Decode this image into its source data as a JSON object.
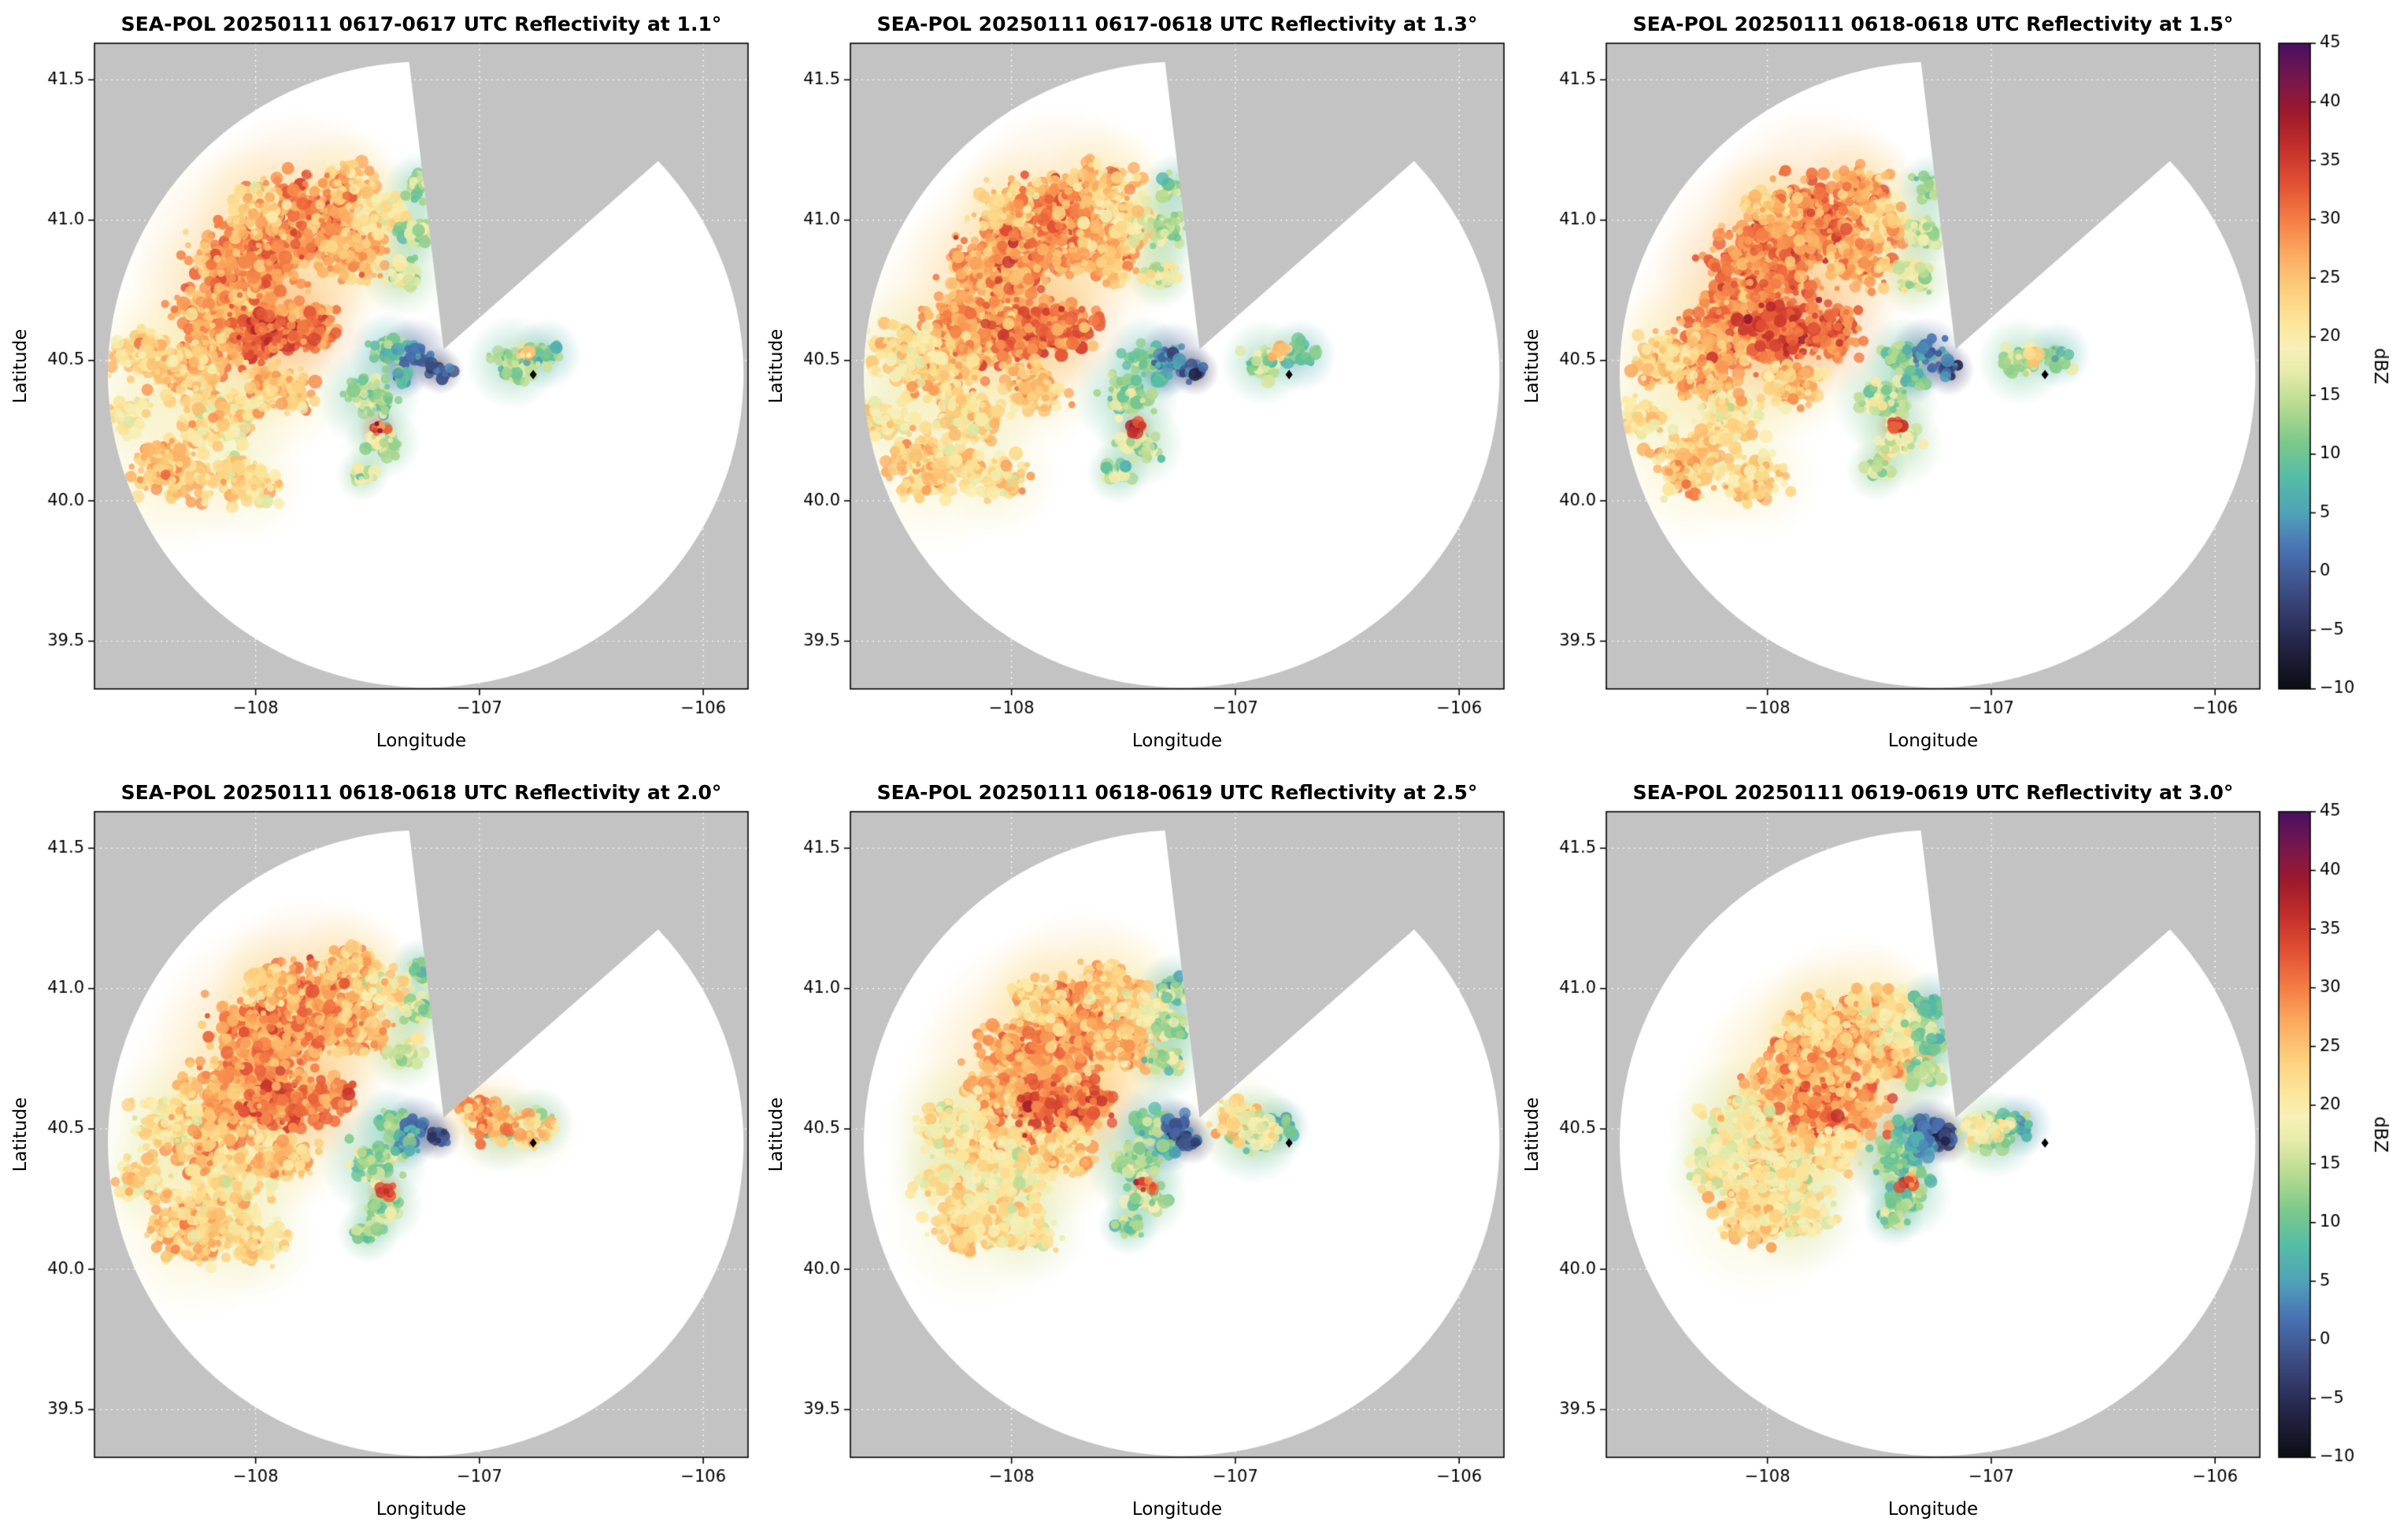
{
  "figure": {
    "background": "#ffffff",
    "outside_color": "#c3c3c3",
    "grid_color": "rgba(255,255,255,0.9)",
    "frame_color": "#000000"
  },
  "chart_data": {
    "type": "radar_ppi_grid",
    "panels": [
      {
        "title": "SEA-POL 20250111 0617-0617 UTC Reflectivity at 1.1°",
        "elevation_deg": 1.1,
        "time_utc": "0617-0617",
        "seed": 11,
        "shrink": 1.0,
        "dbz_offset": 0,
        "extra_cells": []
      },
      {
        "title": "SEA-POL 20250111 0617-0618 UTC Reflectivity at 1.3°",
        "elevation_deg": 1.3,
        "time_utc": "0617-0618",
        "seed": 23,
        "shrink": 1.0,
        "dbz_offset": 0,
        "extra_cells": [
          [
            -107.05,
            41.2,
            0.1,
            20
          ]
        ]
      },
      {
        "title": "SEA-POL 20250111 0618-0618 UTC Reflectivity at 1.5°",
        "elevation_deg": 1.5,
        "time_utc": "0618-0618",
        "seed": 37,
        "shrink": 0.99,
        "dbz_offset": 1,
        "extra_cells": [
          [
            -107.0,
            41.15,
            0.1,
            22
          ]
        ]
      },
      {
        "title": "SEA-POL 20250111 0618-0618 UTC Reflectivity at 2.0°",
        "elevation_deg": 2.0,
        "time_utc": "0618-0618",
        "seed": 49,
        "shrink": 0.93,
        "dbz_offset": 0,
        "extra_cells": [
          [
            -106.92,
            40.54,
            0.13,
            26
          ],
          [
            -106.75,
            40.5,
            0.1,
            22
          ],
          [
            -107.02,
            40.58,
            0.08,
            28
          ]
        ]
      },
      {
        "title": "SEA-POL 20250111 0618-0619 UTC Reflectivity at 2.5°",
        "elevation_deg": 2.5,
        "time_utc": "0618-0619",
        "seed": 61,
        "shrink": 0.82,
        "dbz_offset": -1,
        "extra_cells": [
          [
            -106.95,
            40.55,
            0.12,
            24
          ],
          [
            -106.8,
            40.5,
            0.09,
            20
          ]
        ]
      },
      {
        "title": "SEA-POL 20250111 0619-0619 UTC Reflectivity at 3.0°",
        "elevation_deg": 3.0,
        "time_utc": "0619-0619",
        "seed": 83,
        "shrink": 0.72,
        "dbz_offset": -2,
        "extra_cells": [
          [
            -106.98,
            40.52,
            0.1,
            22
          ]
        ]
      }
    ],
    "axes": {
      "xlabel": "Longitude",
      "ylabel": "Latitude",
      "xlim": [
        -108.72,
        -105.8
      ],
      "ylim": [
        39.33,
        41.63
      ],
      "xticks": [
        -108,
        -107,
        -106
      ],
      "xtick_labels": [
        "−108",
        "−107",
        "−106"
      ],
      "yticks": [
        39.5,
        40.0,
        40.5,
        41.0,
        41.5
      ],
      "ytick_labels": [
        "39.5",
        "40.0",
        "40.5",
        "41.0",
        "41.5"
      ],
      "grid": true
    },
    "colorbar": {
      "label": "dBZ",
      "min": -10,
      "max": 45,
      "ticks": [
        -10,
        -5,
        0,
        5,
        10,
        15,
        20,
        25,
        30,
        35,
        40,
        45
      ],
      "tick_labels": [
        "−10",
        "−5",
        "0",
        "5",
        "10",
        "15",
        "20",
        "25",
        "30",
        "35",
        "40",
        "45"
      ],
      "stops": [
        [
          -10,
          "#0d0d14"
        ],
        [
          -6,
          "#26264a"
        ],
        [
          -2,
          "#3c4a80"
        ],
        [
          2,
          "#4a74b4"
        ],
        [
          5,
          "#4fa3b8"
        ],
        [
          8,
          "#55bda6"
        ],
        [
          11,
          "#7cc98b"
        ],
        [
          14,
          "#b5da90"
        ],
        [
          17,
          "#e7ecac"
        ],
        [
          19,
          "#f9f0b7"
        ],
        [
          21,
          "#fde79c"
        ],
        [
          24,
          "#fdcf7d"
        ],
        [
          27,
          "#fcab60"
        ],
        [
          30,
          "#f57d45"
        ],
        [
          33,
          "#e35235"
        ],
        [
          36,
          "#c5312c"
        ],
        [
          39,
          "#9f1a2c"
        ],
        [
          42,
          "#77174e"
        ],
        [
          45,
          "#491060"
        ]
      ]
    },
    "radar": {
      "center": [
        -107.24,
        40.45
      ],
      "rx_deg": 1.42,
      "ry_deg": 1.115,
      "wedge_apex": [
        -107.16,
        40.54
      ],
      "wedge_start_deg": -43,
      "wedge_end_deg": 267,
      "marker": [
        -106.76,
        40.45
      ],
      "marker_color": "#000000"
    },
    "cells": [
      [
        -108.12,
        40.63,
        0.3,
        27
      ],
      [
        -108.32,
        40.47,
        0.2,
        25
      ],
      [
        -108.02,
        40.85,
        0.27,
        28
      ],
      [
        -107.8,
        41.0,
        0.25,
        29
      ],
      [
        -107.6,
        41.12,
        0.16,
        25
      ],
      [
        -107.95,
        40.6,
        0.17,
        32
      ],
      [
        -107.74,
        40.62,
        0.15,
        30
      ],
      [
        -108.48,
        40.52,
        0.16,
        22
      ],
      [
        -108.58,
        40.3,
        0.12,
        21
      ],
      [
        -108.36,
        40.12,
        0.2,
        24
      ],
      [
        -108.06,
        40.08,
        0.15,
        22
      ],
      [
        -108.18,
        40.3,
        0.18,
        22
      ],
      [
        -107.56,
        40.88,
        0.18,
        26
      ],
      [
        -107.45,
        41.02,
        0.13,
        21
      ],
      [
        -107.9,
        40.4,
        0.15,
        24
      ],
      [
        -108.0,
        41.05,
        0.14,
        24
      ],
      [
        -107.49,
        40.37,
        0.12,
        13
      ],
      [
        -107.43,
        40.21,
        0.1,
        15
      ],
      [
        -107.4,
        40.52,
        0.09,
        11
      ],
      [
        -107.44,
        40.26,
        0.045,
        34
      ],
      [
        -107.52,
        40.1,
        0.07,
        14
      ],
      [
        -107.29,
        40.52,
        0.08,
        3
      ],
      [
        -107.19,
        40.47,
        0.06,
        -1
      ],
      [
        -107.34,
        40.44,
        0.06,
        7
      ],
      [
        -107.33,
        40.8,
        0.09,
        16
      ],
      [
        -107.29,
        40.96,
        0.09,
        14
      ],
      [
        -107.26,
        41.12,
        0.08,
        12
      ],
      [
        -106.86,
        40.5,
        0.11,
        13
      ],
      [
        -106.71,
        40.52,
        0.08,
        11
      ],
      [
        -106.81,
        40.53,
        0.045,
        23
      ]
    ]
  }
}
